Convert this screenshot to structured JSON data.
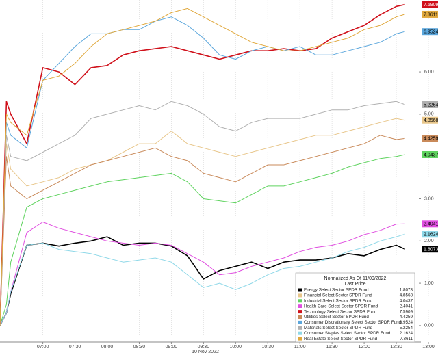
{
  "chart_data": {
    "type": "line",
    "x_label": "10 Nov 2022",
    "legend_title": "Normalized As Of 11/09/2022",
    "legend_subtitle": "Last Price",
    "legend_position": "lower right",
    "grid": "x",
    "xlim": [
      380,
      780
    ],
    "ylim": [
      -0.39,
      7.7
    ],
    "xticks": [
      {
        "value": 420,
        "label": "07:00"
      },
      {
        "value": 450,
        "label": "07:30"
      },
      {
        "value": 480,
        "label": "08:00"
      },
      {
        "value": 510,
        "label": "08:30"
      },
      {
        "value": 540,
        "label": "09:00"
      },
      {
        "value": 570,
        "label": "09:30"
      },
      {
        "value": 600,
        "label": "10:00"
      },
      {
        "value": 630,
        "label": "10:30"
      },
      {
        "value": 660,
        "label": "11:00"
      },
      {
        "value": 690,
        "label": "11:30"
      },
      {
        "value": 720,
        "label": "12:00"
      },
      {
        "value": 750,
        "label": "12:30"
      },
      {
        "value": 780,
        "label": "13:00"
      }
    ],
    "yticks": [
      {
        "value": 0,
        "label": "0.00"
      },
      {
        "value": 1,
        "label": "1.00"
      },
      {
        "value": 2,
        "label": "2.00"
      },
      {
        "value": 3,
        "label": "3.00"
      },
      {
        "value": 5,
        "label": "5.00"
      },
      {
        "value": 6,
        "label": "6.00"
      }
    ],
    "x": [
      380,
      386,
      390,
      405,
      420,
      435,
      450,
      465,
      480,
      495,
      510,
      525,
      540,
      555,
      570,
      585,
      600,
      615,
      630,
      645,
      660,
      675,
      690,
      705,
      720,
      735,
      750,
      758
    ],
    "series": [
      {
        "name": "Energy Select Sector SPDR Fund",
        "color": "#000000",
        "values": [
          0,
          0.3,
          0.75,
          1.9,
          1.95,
          1.88,
          1.95,
          2.0,
          2.1,
          1.9,
          1.95,
          1.95,
          1.88,
          1.65,
          1.1,
          1.3,
          1.4,
          1.5,
          1.35,
          1.5,
          1.55,
          1.55,
          1.6,
          1.7,
          1.65,
          1.8,
          1.9,
          1.8073
        ]
      },
      {
        "name": "Financial Select Sector SPDR Fund",
        "color": "#e8c68a",
        "values": [
          0,
          4.3,
          3.7,
          3.3,
          3.4,
          3.5,
          3.7,
          3.8,
          3.9,
          4.1,
          4.3,
          4.3,
          4.6,
          4.3,
          4.2,
          4.1,
          4.0,
          4.1,
          4.2,
          4.3,
          4.4,
          4.5,
          4.5,
          4.6,
          4.7,
          4.8,
          4.9,
          4.8568
        ]
      },
      {
        "name": "Industrial Select Sector SPDR Fund",
        "color": "#5fd35f",
        "values": [
          0,
          0.5,
          1.5,
          2.8,
          3.0,
          3.1,
          3.2,
          3.3,
          3.4,
          3.45,
          3.5,
          3.55,
          3.6,
          3.4,
          3.0,
          2.95,
          2.9,
          3.1,
          3.3,
          3.3,
          3.4,
          3.5,
          3.6,
          3.75,
          3.85,
          3.95,
          4.0,
          4.0437
        ]
      },
      {
        "name": "Health Care Select Sector SPDR Fund",
        "color": "#e04ee0",
        "values": [
          0,
          0.3,
          0.8,
          2.2,
          2.45,
          2.3,
          2.2,
          2.1,
          2.0,
          1.95,
          1.9,
          1.95,
          1.9,
          1.7,
          1.5,
          1.2,
          1.25,
          1.4,
          1.5,
          1.6,
          1.75,
          1.85,
          1.9,
          2.0,
          2.15,
          2.25,
          2.4,
          2.4041
        ]
      },
      {
        "name": "Technology Select Sector SPDR Fund",
        "color": "#d0111b",
        "values": [
          0,
          5.3,
          5.0,
          4.3,
          6.1,
          6.0,
          5.7,
          6.1,
          6.15,
          6.4,
          6.5,
          6.55,
          6.6,
          6.5,
          6.4,
          6.3,
          6.4,
          6.5,
          6.5,
          6.55,
          6.5,
          6.55,
          6.8,
          6.95,
          7.1,
          7.35,
          7.55,
          7.5909
        ]
      },
      {
        "name": "Utilities Select Sector SPDR Fund",
        "color": "#c98a5a",
        "values": [
          0,
          4.0,
          3.3,
          3.0,
          3.2,
          3.4,
          3.6,
          3.8,
          3.9,
          4.0,
          4.1,
          4.2,
          4.0,
          3.9,
          3.6,
          3.5,
          3.4,
          3.6,
          3.8,
          3.8,
          3.9,
          4.0,
          4.1,
          4.2,
          4.3,
          4.5,
          4.4,
          4.4259
        ]
      },
      {
        "name": "Consumer Discretionary Select Sector SPDR Fund",
        "color": "#5aa6dc",
        "values": [
          0,
          4.8,
          4.5,
          4.2,
          5.8,
          6.2,
          6.6,
          6.9,
          6.9,
          7.0,
          7.0,
          7.2,
          7.3,
          7.1,
          6.8,
          6.4,
          6.3,
          6.5,
          6.6,
          6.5,
          6.6,
          6.4,
          6.4,
          6.5,
          6.6,
          6.7,
          6.9,
          6.9524
        ]
      },
      {
        "name": "Materials Select Sector SPDR Fund",
        "color": "#b0b0b0",
        "values": [
          0,
          4.5,
          4.0,
          3.9,
          4.1,
          4.3,
          4.5,
          4.9,
          5.0,
          5.1,
          5.2,
          5.1,
          5.3,
          5.2,
          5.0,
          4.7,
          4.6,
          4.8,
          4.9,
          4.9,
          4.9,
          5.0,
          5.1,
          5.1,
          5.2,
          5.25,
          5.3,
          5.2254
        ]
      },
      {
        "name": "Consumer Staples Select Sector SPDR Fund",
        "color": "#8fd8e8",
        "values": [
          0,
          0.3,
          0.8,
          1.9,
          1.95,
          1.8,
          1.75,
          1.7,
          1.6,
          1.5,
          1.55,
          1.6,
          1.5,
          1.2,
          0.9,
          1.0,
          0.85,
          1.0,
          1.2,
          1.35,
          1.4,
          1.5,
          1.6,
          1.75,
          1.85,
          2.0,
          2.1,
          2.1624
        ]
      },
      {
        "name": "Real Estate Select Sector SPDR Fund",
        "color": "#e0a83c",
        "values": [
          0,
          5.0,
          4.8,
          4.5,
          5.8,
          5.9,
          6.2,
          6.6,
          6.9,
          7.0,
          7.1,
          7.2,
          7.4,
          7.5,
          7.3,
          7.1,
          6.9,
          6.7,
          6.6,
          6.5,
          6.5,
          6.6,
          6.7,
          6.8,
          7.0,
          7.1,
          7.3,
          7.3611
        ]
      }
    ]
  }
}
